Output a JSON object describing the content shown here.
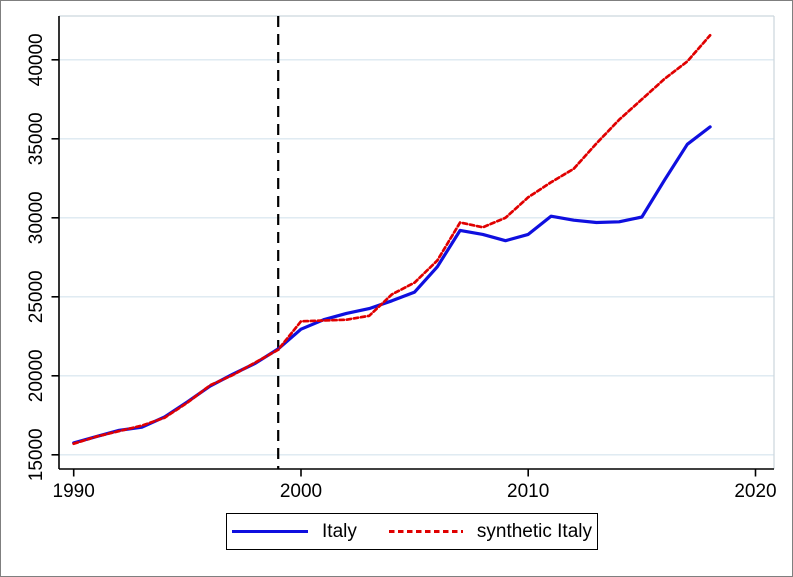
{
  "figure": {
    "background": "#ffffff",
    "border_color": "#7f7f7f"
  },
  "colors": {
    "italy": "#0f0fdf",
    "synthetic": "#e00000",
    "grid": "#dce8f0",
    "plot_border": "#ccd6dd",
    "axis": "#000000",
    "treatment_line": "#000000"
  },
  "chart_data": {
    "type": "line",
    "title": "",
    "xlabel": "",
    "ylabel": "",
    "grid": "horizontal",
    "x": [
      1990,
      1991,
      1992,
      1993,
      1994,
      1995,
      1996,
      1997,
      1998,
      1999,
      2000,
      2001,
      2002,
      2003,
      2004,
      2005,
      2006,
      2007,
      2008,
      2009,
      2010,
      2011,
      2012,
      2013,
      2014,
      2015,
      2016,
      2017,
      2018
    ],
    "series": [
      {
        "name": "Italy",
        "color": "#0f0fdf",
        "line_style": "solid",
        "values": [
          15750,
          16150,
          16550,
          16750,
          17400,
          18350,
          19350,
          20100,
          20800,
          21700,
          22950,
          23550,
          23950,
          24250,
          24750,
          25300,
          26900,
          29200,
          28950,
          28550,
          28950,
          30100,
          29850,
          29700,
          29750,
          30050,
          32400,
          34650,
          35750
        ]
      },
      {
        "name": "synthetic Italy",
        "color": "#e00000",
        "line_style": "dashed",
        "values": [
          15700,
          16150,
          16500,
          16850,
          17350,
          18300,
          19400,
          20050,
          20850,
          21650,
          23450,
          23500,
          23550,
          23800,
          25150,
          25900,
          27300,
          29700,
          29400,
          30000,
          31300,
          32250,
          33100,
          34700,
          36200,
          37500,
          38800,
          39900,
          41550
        ]
      }
    ],
    "treatment_line": {
      "x": 1999,
      "style": "dashed",
      "color": "#000000"
    },
    "x_axis": {
      "ticks": [
        1990,
        2000,
        2010,
        2020
      ],
      "range": [
        1989.35,
        2020.8
      ]
    },
    "y_axis": {
      "ticks": [
        15000,
        20000,
        25000,
        30000,
        35000,
        40000
      ],
      "range": [
        14100,
        42800
      ]
    },
    "legend": {
      "position": "bottom",
      "items": [
        "Italy",
        "synthetic Italy"
      ]
    }
  },
  "legend": {
    "italy_label": "Italy",
    "synthetic_label": "synthetic Italy"
  }
}
